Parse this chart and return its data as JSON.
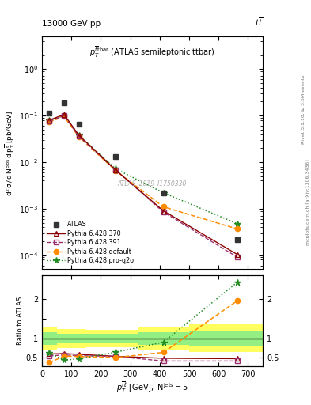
{
  "atlas_x": [
    25,
    75,
    125,
    250,
    412.5,
    662.5
  ],
  "atlas_y": [
    0.115,
    0.185,
    0.065,
    0.013,
    0.0022,
    0.00022
  ],
  "py370_x": [
    25,
    75,
    125,
    250,
    412.5,
    662.5
  ],
  "py370_y": [
    0.08,
    0.105,
    0.038,
    0.0068,
    0.0009,
    0.000105
  ],
  "py391_x": [
    25,
    75,
    125,
    250,
    412.5,
    662.5
  ],
  "py391_y": [
    0.075,
    0.1,
    0.036,
    0.0068,
    0.00085,
    9.2e-05
  ],
  "pydef_x": [
    25,
    75,
    125,
    250,
    412.5,
    662.5
  ],
  "pydef_y": [
    0.073,
    0.095,
    0.035,
    0.0066,
    0.0011,
    0.00037
  ],
  "pyq2o_x": [
    25,
    75,
    125,
    250,
    412.5,
    662.5
  ],
  "pyq2o_y": [
    0.078,
    0.1,
    0.038,
    0.0072,
    0.0022,
    0.00048
  ],
  "ratio_py370": [
    0.6,
    0.61,
    0.59,
    0.54,
    0.49,
    0.48
  ],
  "ratio_py391": [
    0.55,
    0.575,
    0.555,
    0.54,
    0.42,
    0.42
  ],
  "ratio_pydef": [
    0.38,
    0.545,
    0.538,
    0.51,
    0.64,
    1.95
  ],
  "ratio_pyq2o": [
    0.63,
    0.44,
    0.477,
    0.645,
    0.9,
    2.42
  ],
  "band_x_edges": [
    0,
    50,
    150,
    325,
    500,
    750
  ],
  "green_lo": [
    0.84,
    0.88,
    0.88,
    0.84,
    0.8
  ],
  "green_hi": [
    1.16,
    1.12,
    1.12,
    1.16,
    1.2
  ],
  "yellow_lo": [
    0.7,
    0.76,
    0.78,
    0.7,
    0.65
  ],
  "yellow_hi": [
    1.3,
    1.24,
    1.22,
    1.3,
    1.35
  ],
  "color_atlas": "#333333",
  "color_py370": "#8B0000",
  "color_py391": "#9B3070",
  "color_pydef": "#FF8C00",
  "color_pyq2o": "#228B22",
  "ylim_main": [
    5e-05,
    5.0
  ],
  "ylim_ratio": [
    0.28,
    2.6
  ],
  "xlim": [
    0,
    750
  ]
}
